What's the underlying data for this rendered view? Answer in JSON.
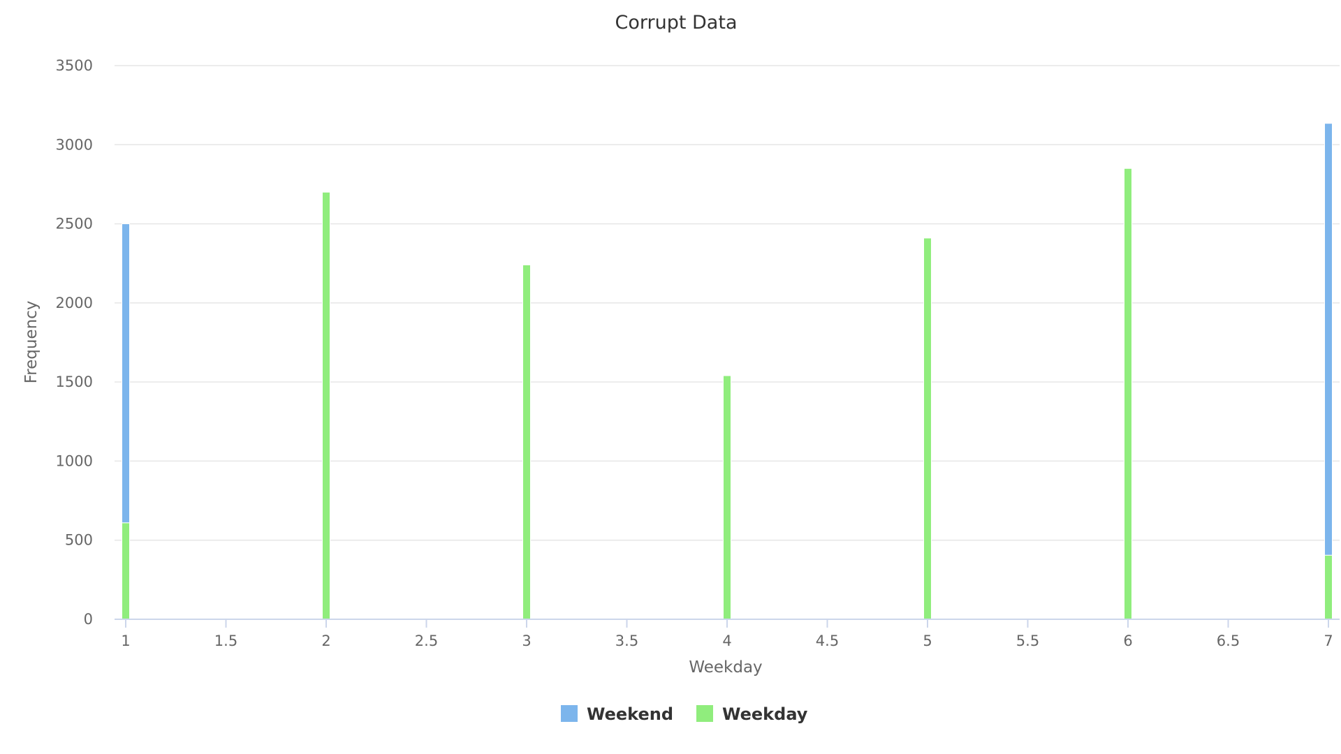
{
  "chart_data": {
    "type": "bar",
    "title": "Corrupt Data",
    "xlabel": "Weekday",
    "ylabel": "Frequency",
    "xlim": [
      1,
      7
    ],
    "ylim": [
      0,
      3500
    ],
    "x_ticks": [
      "1",
      "1.5",
      "2",
      "2.5",
      "3",
      "3.5",
      "4",
      "4.5",
      "5",
      "5.5",
      "6",
      "6.5",
      "7"
    ],
    "y_ticks": [
      "0",
      "500",
      "1000",
      "1500",
      "2000",
      "2500",
      "3000",
      "3500"
    ],
    "grid": true,
    "stacked": true,
    "legend_position": "bottom-center",
    "x": [
      1,
      2,
      3,
      4,
      5,
      6,
      7
    ],
    "series": [
      {
        "name": "Weekend",
        "color": "#7cb5ec",
        "values": [
          1890,
          0,
          0,
          0,
          0,
          0,
          2730
        ]
      },
      {
        "name": "Weekday",
        "color": "#90ed7d",
        "values": [
          610,
          2700,
          2240,
          1540,
          2410,
          2850,
          405
        ]
      }
    ]
  }
}
